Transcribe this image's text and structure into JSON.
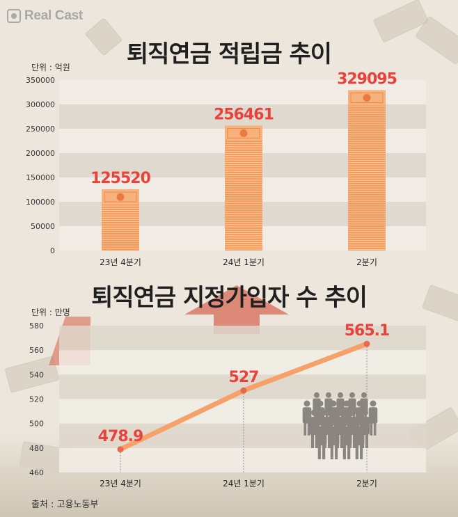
{
  "brand": {
    "logo_text": "Real Cast"
  },
  "chart_data": [
    {
      "type": "bar",
      "title": "퇴직연금 적립금 추이",
      "unit_label": "단위 : 억원",
      "categories": [
        "23년 4분기",
        "24년 1분기",
        "2분기"
      ],
      "values": [
        125520,
        256461,
        329095
      ],
      "data_labels": [
        "125520",
        "256461",
        "329095"
      ],
      "yticks": [
        "0",
        "50000",
        "100000",
        "150000",
        "200000",
        "250000",
        "300000",
        "350000"
      ],
      "ylim": [
        0,
        350000
      ],
      "grid": true,
      "bar_color": "#f39a59",
      "label_color": "#e8423b"
    },
    {
      "type": "line",
      "title": "퇴직연금 지정가입자 수 추이",
      "unit_label": "단위 : 만명",
      "categories": [
        "23년 4분기",
        "24년 1분기",
        "2분기"
      ],
      "values": [
        478.9,
        527,
        565.1
      ],
      "data_labels": [
        "478.9",
        "527",
        "565.1"
      ],
      "yticks": [
        "460",
        "480",
        "500",
        "520",
        "540",
        "560",
        "580"
      ],
      "ylim": [
        460,
        580
      ],
      "grid": true,
      "line_color": "#f6a06a",
      "point_color": "#e86a4a",
      "label_color": "#e8423b",
      "icon": "people-crowd-icon"
    }
  ],
  "footer": {
    "source": "출처 : 고용노동부"
  }
}
